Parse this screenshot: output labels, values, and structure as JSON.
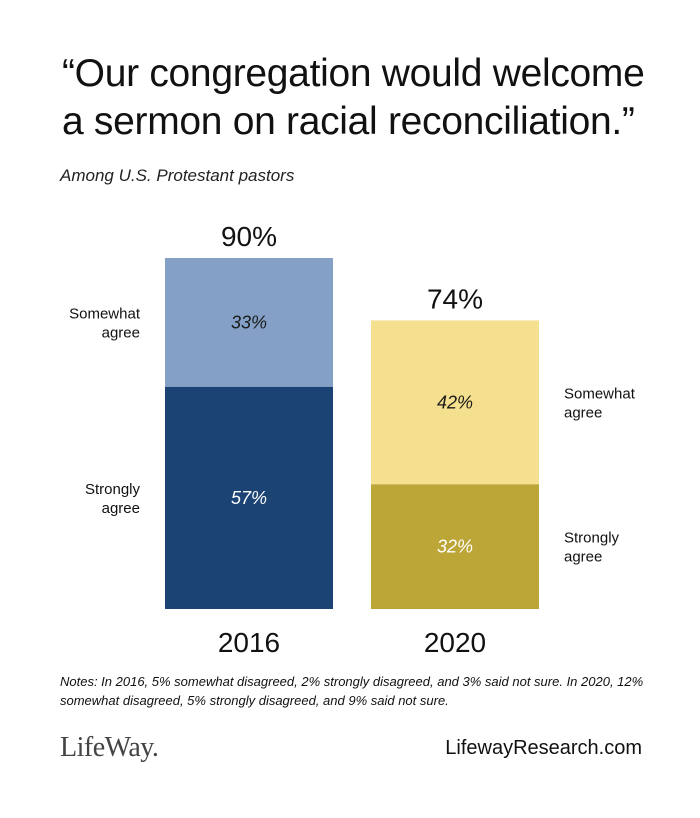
{
  "header": {
    "title_line1": "“Our congregation would welcome",
    "title_line2": "a sermon on racial reconciliation.”",
    "subtitle": "Among U.S. Protestant pastors"
  },
  "chart_data": {
    "type": "bar",
    "stacked": true,
    "categories": [
      "2016",
      "2020"
    ],
    "totals": [
      "90%",
      "74%"
    ],
    "ylim": [
      0,
      100
    ],
    "series": [
      {
        "name": "Strongly agree",
        "values": [
          57,
          32
        ],
        "labels": [
          "57%",
          "32%"
        ],
        "colors": [
          "#1b4374",
          "#bca637"
        ],
        "label_color": "#ffffff"
      },
      {
        "name": "Somewhat agree",
        "values": [
          33,
          42
        ],
        "labels": [
          "33%",
          "42%"
        ],
        "colors": [
          "#84a0c6",
          "#f5e08f"
        ],
        "label_color": "#1a1a1a"
      }
    ],
    "side_labels": {
      "2016": {
        "somewhat_line1": "Somewhat",
        "somewhat_line2": "agree",
        "strongly_line1": "Strongly",
        "strongly_line2": "agree"
      },
      "2020": {
        "somewhat_line1": "Somewhat",
        "somewhat_line2": "agree",
        "strongly_line1": "Strongly",
        "strongly_line2": "agree"
      }
    }
  },
  "notes": "Notes: In 2016, 5% somewhat disagreed, 2% strongly disagreed, and 3% said not sure. In 2020, 12% somewhat disagreed, 5% strongly disagreed, and 9% said not sure.",
  "footer": {
    "brand": "LifeWay.",
    "website": "LifewayResearch.com"
  }
}
